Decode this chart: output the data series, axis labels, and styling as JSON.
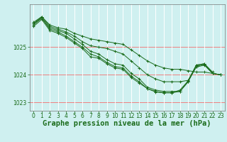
{
  "background_color": "#cff0f0",
  "plot_bg_color": "#cff0f0",
  "grid_color_h": "#f08080",
  "grid_color_v": "#ffffff",
  "line_color": "#1a6b1a",
  "xlabel": "Graphe pression niveau de la mer (hPa)",
  "xlabel_fontsize": 7.5,
  "tick_fontsize": 5.5,
  "ylim": [
    1022.7,
    1026.55
  ],
  "yticks": [
    1023,
    1024,
    1025
  ],
  "xlim": [
    -0.5,
    23.5
  ],
  "xticks": [
    0,
    1,
    2,
    3,
    4,
    5,
    6,
    7,
    8,
    9,
    10,
    11,
    12,
    13,
    14,
    15,
    16,
    17,
    18,
    19,
    20,
    21,
    22,
    23
  ],
  "series": [
    [
      1025.9,
      1026.1,
      1025.8,
      1025.7,
      1025.65,
      1025.5,
      1025.4,
      1025.3,
      1025.25,
      1025.2,
      1025.15,
      1025.1,
      1024.9,
      1024.7,
      1024.5,
      1024.35,
      1024.25,
      1024.2,
      1024.2,
      1024.15,
      1024.1,
      1024.1,
      1024.05,
      1024.0
    ],
    [
      1025.85,
      1026.1,
      1025.75,
      1025.65,
      1025.55,
      1025.4,
      1025.2,
      1025.05,
      1025.0,
      1024.95,
      1024.85,
      1024.75,
      1024.5,
      1024.25,
      1024.0,
      1023.85,
      1023.75,
      1023.75,
      1023.75,
      1023.8,
      1024.35,
      1024.4,
      1024.1,
      null
    ],
    [
      1025.85,
      1026.05,
      1025.7,
      1025.6,
      1025.5,
      1025.3,
      1025.1,
      1024.85,
      1024.75,
      1024.55,
      1024.4,
      1024.35,
      1024.05,
      1023.85,
      1023.55,
      1023.45,
      1023.4,
      1023.4,
      1023.4,
      1023.75,
      1024.35,
      1024.4,
      1024.05,
      1024.0
    ],
    [
      1025.8,
      1026.05,
      1025.65,
      1025.55,
      1025.4,
      1025.2,
      1025.0,
      1024.75,
      1024.65,
      1024.45,
      1024.3,
      1024.25,
      1023.95,
      1023.75,
      1023.5,
      1023.4,
      1023.35,
      1023.35,
      1023.4,
      1023.75,
      1024.3,
      1024.38,
      1024.05,
      1024.0
    ],
    [
      1025.75,
      1026.0,
      1025.6,
      1025.5,
      1025.35,
      1025.15,
      1024.95,
      1024.65,
      1024.6,
      1024.4,
      1024.25,
      1024.2,
      1023.9,
      1023.7,
      1023.5,
      1023.38,
      1023.35,
      1023.35,
      1023.45,
      1023.78,
      1024.28,
      1024.35,
      1024.05,
      1024.0
    ]
  ]
}
